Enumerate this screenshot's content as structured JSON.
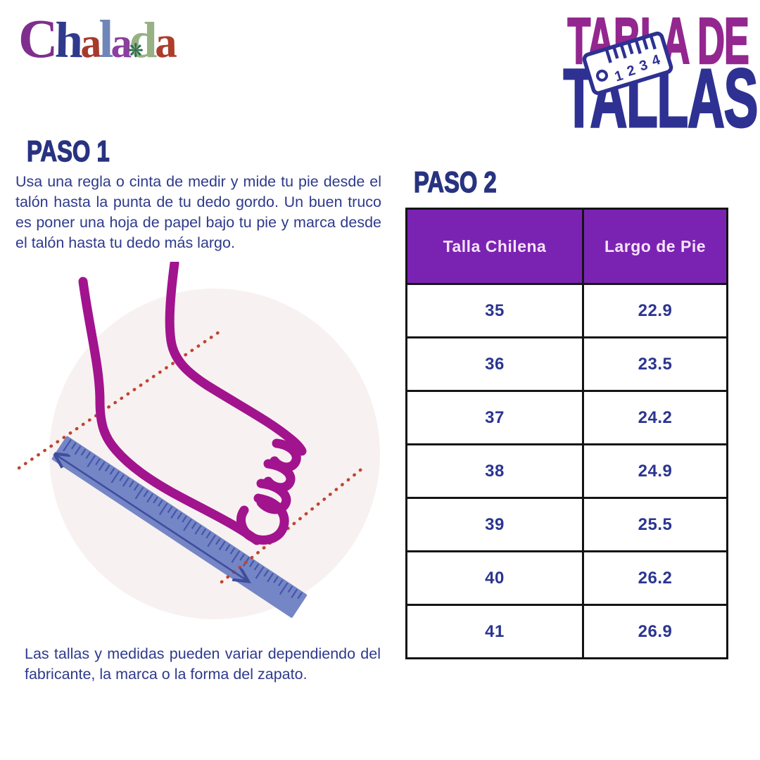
{
  "brand": {
    "letters": [
      {
        "char": "C",
        "color": "#7E2F8E"
      },
      {
        "char": "h",
        "color": "#2F3A8C"
      },
      {
        "char": "a",
        "color": "#A63A2B"
      },
      {
        "char": "l",
        "color": "#7186B8"
      },
      {
        "char": "a",
        "color": "#8B3F9E"
      },
      {
        "char": "d",
        "color": "#96B183"
      },
      {
        "char": "a",
        "color": "#AD3D2B"
      }
    ],
    "ornament_glyph": "❋",
    "ornament_color": "#2C6E52"
  },
  "title": {
    "line1": "TABLA DE",
    "line2": "TALLAS",
    "badge_numbers": [
      "1",
      "2",
      "3",
      "4"
    ]
  },
  "step1": {
    "heading": "PASO 1",
    "body": "Usa una regla o cinta de medir y mide tu pie desde el talón hasta la punta de tu dedo gordo. Un buen truco es poner una hoja de papel bajo tu pie y marca desde el talón hasta tu dedo más largo."
  },
  "step2": {
    "heading": "PASO 2"
  },
  "note": "Las tallas y medidas pueden variar dependiendo del fabricante, la marca o la forma del zapato.",
  "size_table": {
    "columns": [
      "Talla Chilena",
      "Largo de Pie"
    ],
    "rows": [
      [
        "35",
        "22.9"
      ],
      [
        "36",
        "23.5"
      ],
      [
        "37",
        "24.2"
      ],
      [
        "38",
        "24.9"
      ],
      [
        "39",
        "25.5"
      ],
      [
        "40",
        "26.2"
      ],
      [
        "41",
        "26.9"
      ]
    ]
  },
  "colors": {
    "title_magenta": "#93278F",
    "title_navy": "#2E3192",
    "heading_navy": "#283380",
    "body_navy": "#2E3A8C",
    "table_header_bg": "#7A23B3",
    "table_header_text": "#F7E4F7",
    "table_cell_text": "#2B3590",
    "table_border": "#141414",
    "foot_stroke": "#A2138E",
    "ruler_fill": "#7586C6",
    "ruler_ticks": "#4456A8",
    "dotted_line_red": "#BF4632",
    "arrow_navy": "#3F4E9C",
    "circle_bg": "#F8F1F1"
  }
}
